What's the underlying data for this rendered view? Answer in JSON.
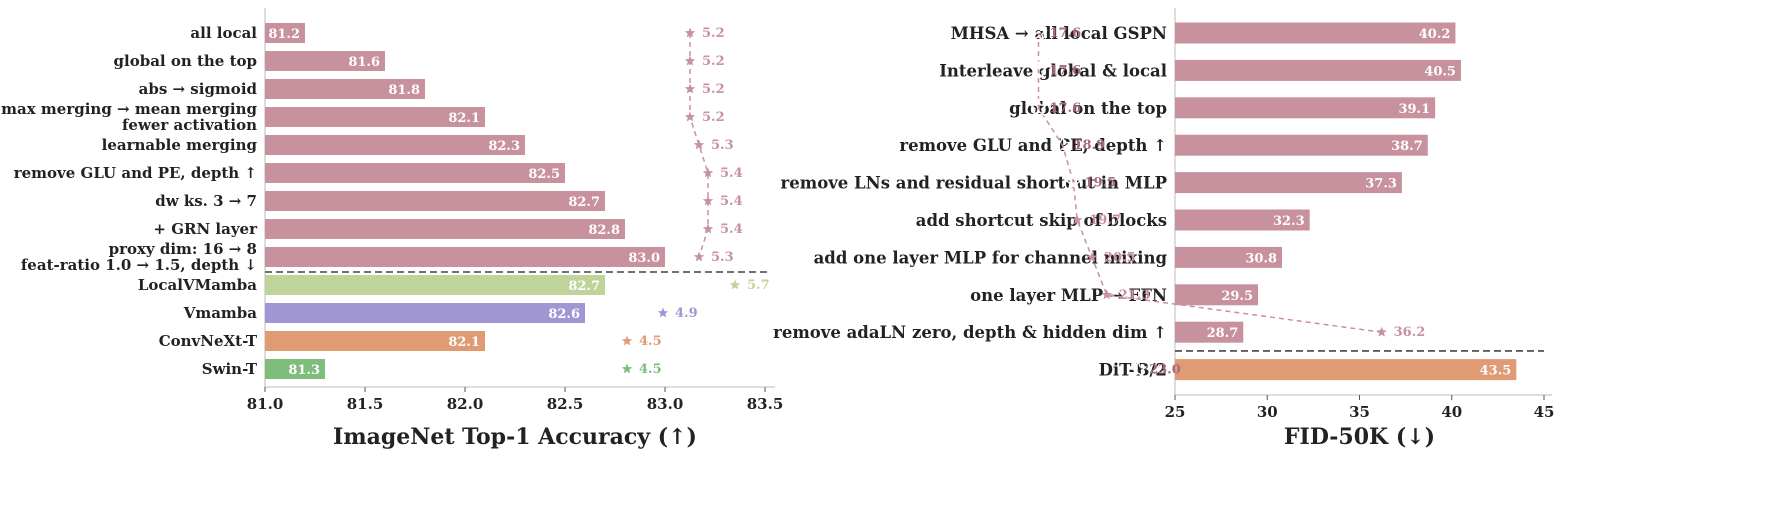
{
  "chart_data": [
    {
      "type": "bar",
      "xlabel": "ImageNet Top-1 Accuracy (↑)",
      "xlim": [
        81.0,
        83.5
      ],
      "xticks": [
        "81.0",
        "81.5",
        "82.0",
        "82.5",
        "83.0",
        "83.5"
      ],
      "colors": {
        "ours": "#c8919e",
        "LocalVMamba": "#bfd49b",
        "Vmamba": "#a196d4",
        "ConvNeXt-T": "#e09a74",
        "Swin-T": "#7fbd7d"
      },
      "categories": [
        [
          "all local"
        ],
        [
          "global on the top"
        ],
        [
          "abs → sigmoid"
        ],
        [
          "max merging → mean merging",
          "fewer activation"
        ],
        [
          "learnable merging"
        ],
        [
          "remove GLU and PE, depth ↑"
        ],
        [
          "dw ks. 3 → 7"
        ],
        [
          "+ GRN layer"
        ],
        [
          "proxy dim: 16 → 8",
          "feat-ratio 1.0 → 1.5, depth ↓"
        ],
        [
          "LocalVMamba"
        ],
        [
          "Vmamba"
        ],
        [
          "ConvNeXt-T"
        ],
        [
          "Swin-T"
        ]
      ],
      "series_keys": [
        "ours",
        "ours",
        "ours",
        "ours",
        "ours",
        "ours",
        "ours",
        "ours",
        "ours",
        "LocalVMamba",
        "Vmamba",
        "ConvNeXt-T",
        "Swin-T"
      ],
      "values": [
        81.2,
        81.6,
        81.8,
        82.1,
        82.3,
        82.5,
        82.7,
        82.8,
        83.0,
        82.7,
        82.6,
        82.1,
        81.3
      ],
      "value_labels": [
        "81.2",
        "81.6",
        "81.8",
        "82.1",
        "82.3",
        "82.5",
        "82.7",
        "82.8",
        "83.0",
        "82.7",
        "82.6",
        "82.1",
        "81.3"
      ],
      "star_values": [
        5.2,
        5.2,
        5.2,
        5.2,
        5.3,
        5.4,
        5.4,
        5.4,
        5.3,
        5.7,
        4.9,
        4.5,
        4.5
      ],
      "star_labels": [
        "5.2",
        "5.2",
        "5.2",
        "5.2",
        "5.3",
        "5.4",
        "5.4",
        "5.4",
        "5.3",
        "5.7",
        "4.9",
        "4.5",
        "4.5"
      ],
      "star_trend_rows": 9,
      "separator_after_row": 9
    },
    {
      "type": "bar",
      "xlabel": "FID-50K (↓)",
      "xlim": [
        25,
        45
      ],
      "xticks": [
        "25",
        "30",
        "35",
        "40",
        "45"
      ],
      "colors": {
        "ours": "#c8919e",
        "DiT-B/2": "#e09a74"
      },
      "categories": [
        [
          "MHSA → all local GSPN"
        ],
        [
          "Interleave global & local"
        ],
        [
          "global on the top"
        ],
        [
          "remove GLU and PE, depth ↑"
        ],
        [
          "remove LNs and residual shortcut in MLP"
        ],
        [
          "add shortcut skip of blocks"
        ],
        [
          "add one layer MLP for channel mixing"
        ],
        [
          "one layer MLP → FFN"
        ],
        [
          "remove adaLN zero, depth & hidden dim ↑"
        ],
        [
          "DiT-B/2"
        ]
      ],
      "series_keys": [
        "ours",
        "ours",
        "ours",
        "ours",
        "ours",
        "ours",
        "ours",
        "ours",
        "ours",
        "DiT-B/2"
      ],
      "values": [
        40.2,
        40.5,
        39.1,
        38.7,
        37.3,
        32.3,
        30.8,
        29.5,
        28.7,
        43.5
      ],
      "value_labels": [
        "40.2",
        "40.5",
        "39.1",
        "38.7",
        "37.3",
        "32.3",
        "30.8",
        "29.5",
        "28.7",
        "43.5"
      ],
      "star_values": [
        17.6,
        17.6,
        17.6,
        18.9,
        19.5,
        19.7,
        20.5,
        21.3,
        36.2,
        23.0
      ],
      "star_labels": [
        "17.6",
        "17.6",
        "17.6",
        "18.9",
        "19.5",
        "19.7",
        "20.5",
        "21.3",
        "36.2",
        "23.0"
      ],
      "star_filled": [
        false,
        false,
        false,
        false,
        false,
        true,
        true,
        true,
        true,
        false
      ],
      "separator_after_row": 9
    }
  ]
}
